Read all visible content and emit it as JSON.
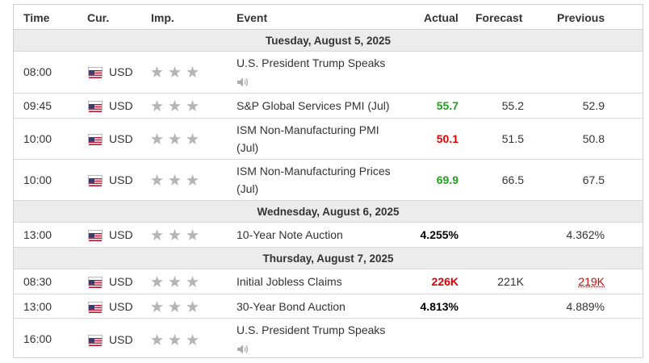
{
  "headers": {
    "time": "Time",
    "currency": "Cur.",
    "importance": "Imp.",
    "event": "Event",
    "actual": "Actual",
    "forecast": "Forecast",
    "previous": "Previous"
  },
  "dates": [
    "Tuesday, August 5, 2025",
    "Wednesday, August 6, 2025",
    "Thursday, August 7, 2025"
  ],
  "events": [
    {
      "time": "08:00",
      "currency": "USD",
      "importance": 3,
      "event": "U.S. President Trump Speaks",
      "actual": "",
      "forecast": "",
      "previous": "",
      "has_audio": true,
      "actual_status": "none",
      "previous_status": "none"
    },
    {
      "time": "09:45",
      "currency": "USD",
      "importance": 3,
      "event": "S&P Global Services PMI (Jul)",
      "actual": "55.7",
      "forecast": "55.2",
      "previous": "52.9",
      "has_audio": false,
      "actual_status": "better",
      "previous_status": "none"
    },
    {
      "time": "10:00",
      "currency": "USD",
      "importance": 3,
      "event_line1": "ISM Non-Manufacturing PMI",
      "event_line2": "(Jul)",
      "actual": "50.1",
      "forecast": "51.5",
      "previous": "50.8",
      "has_audio": false,
      "actual_status": "worse",
      "previous_status": "none"
    },
    {
      "time": "10:00",
      "currency": "USD",
      "importance": 3,
      "event_line1": "ISM Non-Manufacturing Prices",
      "event_line2": "(Jul)",
      "actual": "69.9",
      "forecast": "66.5",
      "previous": "67.5",
      "has_audio": false,
      "actual_status": "better",
      "previous_status": "none"
    },
    {
      "time": "13:00",
      "currency": "USD",
      "importance": 3,
      "event": "10-Year Note Auction",
      "actual": "4.255%",
      "forecast": "",
      "previous": "4.362%",
      "has_audio": false,
      "actual_status": "neutral",
      "previous_status": "none"
    },
    {
      "time": "08:30",
      "currency": "USD",
      "importance": 3,
      "event": "Initial Jobless Claims",
      "actual": "226K",
      "forecast": "221K",
      "previous": "219K",
      "has_audio": false,
      "actual_status": "worse",
      "previous_status": "revised"
    },
    {
      "time": "13:00",
      "currency": "USD",
      "importance": 3,
      "event": "30-Year Bond Auction",
      "actual": "4.813%",
      "forecast": "",
      "previous": "4.889%",
      "has_audio": false,
      "actual_status": "neutral",
      "previous_status": "none"
    },
    {
      "time": "16:00",
      "currency": "USD",
      "importance": 3,
      "event": "U.S. President Trump Speaks",
      "actual": "",
      "forecast": "",
      "previous": "",
      "has_audio": true,
      "actual_status": "none",
      "previous_status": "none"
    }
  ],
  "icons": {
    "flag": "us-flag-icon",
    "importance": "star-icon",
    "audio": "speaker-icon"
  },
  "colors": {
    "better": "#21a11d",
    "worse": "#e10000",
    "neutral": "#000000",
    "star": "#b5b5b5",
    "date_bg": "#ececec"
  }
}
